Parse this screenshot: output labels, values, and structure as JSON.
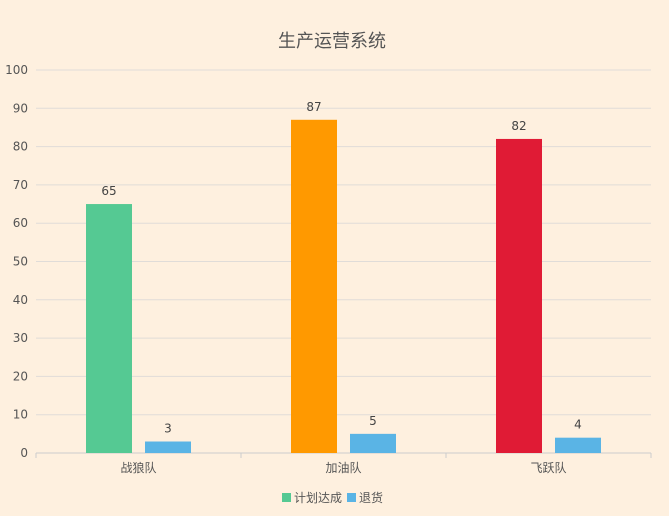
{
  "chart_data": {
    "type": "bar",
    "title": "生产运营系统",
    "categories": [
      "战狼队",
      "加油队",
      "飞跃队"
    ],
    "series": [
      {
        "name": "计划达成",
        "values": [
          65,
          87,
          82
        ],
        "color": "#55c993",
        "point_colors": [
          "#55c993",
          "#ff9900",
          "#e01b35"
        ]
      },
      {
        "name": "退货",
        "values": [
          3,
          5,
          4
        ],
        "color": "#5ab4e5"
      }
    ],
    "ylim": [
      0,
      100
    ],
    "yticks": [
      0,
      10,
      20,
      30,
      40,
      50,
      60,
      70,
      80,
      90,
      100
    ],
    "grid": true,
    "legend": "bottom-center",
    "xlabel": "",
    "ylabel": ""
  }
}
